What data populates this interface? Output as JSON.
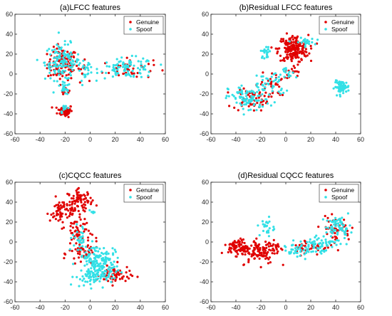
{
  "colors": {
    "genuine": "#e00000",
    "spoof": "#33e0e6"
  },
  "chart_data": [
    {
      "type": "scatter",
      "title": "(a)LFCC features",
      "xlim": [
        -60,
        60
      ],
      "ylim": [
        -60,
        60
      ],
      "xticks": [
        -60,
        -40,
        -20,
        0,
        20,
        40,
        60
      ],
      "yticks": [
        -60,
        -40,
        -20,
        0,
        20,
        40,
        60
      ],
      "legend": {
        "placement": "top-right",
        "entries": [
          "Genuine",
          "Spoof"
        ]
      },
      "series": [
        {
          "name": "Genuine",
          "clusters": [
            {
              "cx": -22,
              "cy": 10,
              "sx": 6,
              "sy": 8,
              "n": 120
            },
            {
              "cx": -20,
              "cy": -37,
              "sx": 3,
              "sy": 3,
              "n": 60
            },
            {
              "cx": -20,
              "cy": -16,
              "sx": 1.5,
              "sy": 2,
              "n": 8
            },
            {
              "cx": -6,
              "cy": 3,
              "sx": 2,
              "sy": 5,
              "n": 10
            },
            {
              "cx": 30,
              "cy": 5,
              "sx": 10,
              "sy": 5,
              "n": 40
            }
          ]
        },
        {
          "name": "Spoof",
          "clusters": [
            {
              "cx": -22,
              "cy": 12,
              "sx": 7,
              "sy": 9,
              "n": 130
            },
            {
              "cx": -20,
              "cy": -15,
              "sx": 2,
              "sy": 3,
              "n": 20
            },
            {
              "cx": -4,
              "cy": 2,
              "sx": 3,
              "sy": 6,
              "n": 20
            },
            {
              "cx": 30,
              "cy": 6,
              "sx": 11,
              "sy": 5,
              "n": 90
            },
            {
              "cx": -20,
              "cy": -35,
              "sx": 2,
              "sy": 2,
              "n": 10
            }
          ]
        }
      ]
    },
    {
      "type": "scatter",
      "title": "(b)Residual LFCC features",
      "xlim": [
        -60,
        60
      ],
      "ylim": [
        -60,
        60
      ],
      "xticks": [
        -60,
        -40,
        -20,
        0,
        20,
        40,
        60
      ],
      "yticks": [
        -60,
        -40,
        -20,
        0,
        20,
        40,
        60
      ],
      "legend": {
        "placement": "top-right",
        "entries": [
          "Genuine",
          "Spoof"
        ]
      },
      "series": [
        {
          "name": "Genuine",
          "clusters": [
            {
              "cx": 6,
              "cy": 25,
              "sx": 6,
              "sy": 7,
              "n": 200
            },
            {
              "cx": -28,
              "cy": -25,
              "sx": 7,
              "sy": 6,
              "n": 70
            },
            {
              "cx": -10,
              "cy": -10,
              "sx": 5,
              "sy": 6,
              "n": 30
            },
            {
              "cx": 5,
              "cy": 2,
              "sx": 3,
              "sy": 3,
              "n": 10
            }
          ]
        },
        {
          "name": "Spoof",
          "clusters": [
            {
              "cx": -30,
              "cy": -25,
              "sx": 8,
              "sy": 7,
              "n": 90
            },
            {
              "cx": -12,
              "cy": -10,
              "sx": 6,
              "sy": 7,
              "n": 40
            },
            {
              "cx": -16,
              "cy": 22,
              "sx": 2,
              "sy": 3,
              "n": 20
            },
            {
              "cx": 15,
              "cy": 32,
              "sx": 4,
              "sy": 2,
              "n": 25
            },
            {
              "cx": 45,
              "cy": -13,
              "sx": 3,
              "sy": 3,
              "n": 70
            },
            {
              "cx": 3,
              "cy": 0,
              "sx": 3,
              "sy": 4,
              "n": 15
            }
          ]
        }
      ]
    },
    {
      "type": "scatter",
      "title": "(c)CQCC features",
      "xlim": [
        -60,
        60
      ],
      "ylim": [
        -60,
        60
      ],
      "xticks": [
        -60,
        -40,
        -20,
        0,
        20,
        40,
        60
      ],
      "yticks": [
        -60,
        -40,
        -20,
        0,
        20,
        40,
        60
      ],
      "legend": {
        "placement": "top-right",
        "entries": [
          "Genuine",
          "Spoof"
        ]
      },
      "series": [
        {
          "name": "Genuine",
          "clusters": [
            {
              "cx": -8,
              "cy": 42,
              "sx": 5,
              "sy": 5,
              "n": 70
            },
            {
              "cx": -22,
              "cy": 30,
              "sx": 5,
              "sy": 7,
              "n": 70
            },
            {
              "cx": -10,
              "cy": 10,
              "sx": 5,
              "sy": 8,
              "n": 50
            },
            {
              "cx": -5,
              "cy": -12,
              "sx": 6,
              "sy": 7,
              "n": 45
            },
            {
              "cx": 20,
              "cy": -33,
              "sx": 6,
              "sy": 5,
              "n": 60
            }
          ]
        },
        {
          "name": "Spoof",
          "clusters": [
            {
              "cx": 5,
              "cy": -15,
              "sx": 7,
              "sy": 6,
              "n": 100
            },
            {
              "cx": 0,
              "cy": -35,
              "sx": 6,
              "sy": 5,
              "n": 70
            },
            {
              "cx": 12,
              "cy": -28,
              "sx": 5,
              "sy": 6,
              "n": 50
            },
            {
              "cx": -8,
              "cy": 5,
              "sx": 3,
              "sy": 6,
              "n": 25
            },
            {
              "cx": 2,
              "cy": 30,
              "sx": 1,
              "sy": 1,
              "n": 5
            }
          ]
        }
      ]
    },
    {
      "type": "scatter",
      "title": "(d)Residual CQCC features",
      "xlim": [
        -60,
        60
      ],
      "ylim": [
        -60,
        60
      ],
      "xticks": [
        -60,
        -40,
        -20,
        0,
        20,
        40,
        60
      ],
      "yticks": [
        -60,
        -40,
        -20,
        0,
        20,
        40,
        60
      ],
      "legend": {
        "placement": "top-right",
        "entries": [
          "Genuine",
          "Spoof"
        ]
      },
      "series": [
        {
          "name": "Genuine",
          "clusters": [
            {
              "cx": -38,
              "cy": -5,
              "sx": 4,
              "sy": 4,
              "n": 80
            },
            {
              "cx": -22,
              "cy": -10,
              "sx": 7,
              "sy": 6,
              "n": 90
            },
            {
              "cx": -10,
              "cy": -5,
              "sx": 4,
              "sy": 4,
              "n": 30
            },
            {
              "cx": 20,
              "cy": -5,
              "sx": 8,
              "sy": 4,
              "n": 40
            },
            {
              "cx": 40,
              "cy": 13,
              "sx": 6,
              "sy": 6,
              "n": 50
            }
          ]
        },
        {
          "name": "Spoof",
          "clusters": [
            {
              "cx": 25,
              "cy": -2,
              "sx": 9,
              "sy": 5,
              "n": 70
            },
            {
              "cx": 42,
              "cy": 15,
              "sx": 5,
              "sy": 5,
              "n": 60
            },
            {
              "cx": -15,
              "cy": 15,
              "sx": 3,
              "sy": 5,
              "n": 25
            },
            {
              "cx": 8,
              "cy": -8,
              "sx": 5,
              "sy": 3,
              "n": 30
            }
          ]
        }
      ]
    }
  ]
}
